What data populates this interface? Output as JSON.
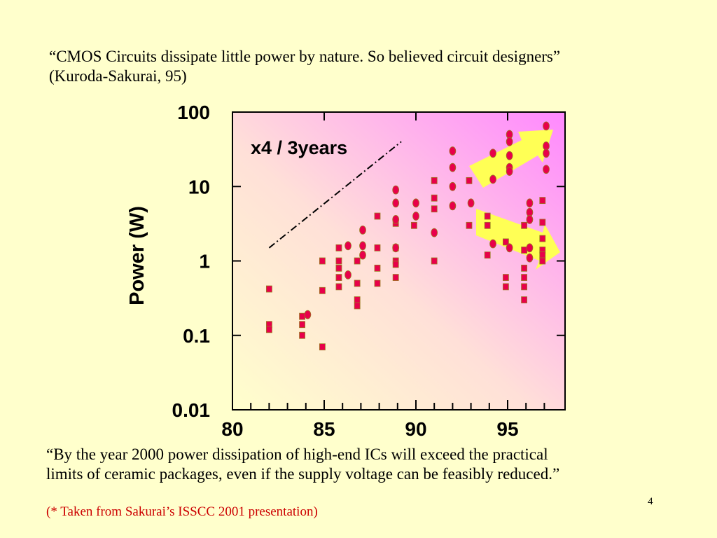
{
  "slide": {
    "quote_top_line1": "“CMOS Circuits dissipate little power by nature. So believed circuit designers”",
    "quote_top_line2": "(Kuroda-Sakurai, 95)",
    "quote_bottom_line1": "“By the year 2000 power dissipation of high-end ICs will exceed the practical",
    "quote_bottom_line2": "limits of ceramic packages, even if the supply voltage can be feasibly reduced.”",
    "source_note": "(* Taken from Sakurai’s ISSCC 2001 presentation)",
    "slide_number": "4"
  },
  "colors": {
    "background": "#ffffcc",
    "marker": "#e8004a",
    "arrow_fill": "#ffff55",
    "gradient_right": "#ff88ff",
    "source_note": "#cc0000"
  },
  "chart_data": {
    "type": "scatter",
    "title": "",
    "xlabel": "",
    "ylabel": "Power (W)",
    "yscale": "log",
    "xlim": [
      80,
      98
    ],
    "ylim": [
      0.01,
      100
    ],
    "x_tick_labels": [
      "80",
      "85",
      "90",
      "95"
    ],
    "x_tick_values": [
      80,
      85,
      90,
      95
    ],
    "y_tick_labels": [
      "100",
      "10",
      "1",
      "0.1",
      "0.01"
    ],
    "y_tick_values": [
      100,
      10,
      1,
      0.1,
      0.01
    ],
    "annotation": "x4 / 3years",
    "trend_line": {
      "x": [
        82,
        89.2
      ],
      "y": [
        1.5,
        40
      ]
    },
    "series": [
      {
        "marker": "square",
        "points": [
          [
            82,
            0.42
          ],
          [
            82,
            0.14
          ],
          [
            82,
            0.12
          ],
          [
            83.8,
            0.18
          ],
          [
            83.8,
            0.14
          ],
          [
            83.8,
            0.1
          ],
          [
            84.9,
            1.0
          ],
          [
            84.9,
            0.4
          ],
          [
            84.9,
            0.07
          ],
          [
            85.8,
            1.5
          ],
          [
            85.8,
            1.0
          ],
          [
            85.8,
            0.8
          ],
          [
            85.8,
            0.6
          ],
          [
            85.8,
            0.45
          ],
          [
            86.8,
            1.0
          ],
          [
            86.8,
            0.5
          ],
          [
            86.8,
            0.3
          ],
          [
            86.8,
            0.25
          ],
          [
            87.9,
            4.0
          ],
          [
            87.9,
            1.5
          ],
          [
            87.9,
            0.8
          ],
          [
            87.9,
            0.5
          ],
          [
            88.9,
            3.2
          ],
          [
            88.9,
            1.5
          ],
          [
            88.9,
            1.0
          ],
          [
            88.9,
            0.9
          ],
          [
            88.9,
            0.6
          ],
          [
            89.9,
            3.0
          ],
          [
            91,
            12.0
          ],
          [
            91,
            7.0
          ],
          [
            91,
            5.0
          ],
          [
            91,
            1.0
          ],
          [
            92.9,
            12.0
          ],
          [
            92.9,
            3.0
          ],
          [
            93.9,
            4.0
          ],
          [
            93.9,
            3.0
          ],
          [
            93.9,
            1.2
          ],
          [
            94.9,
            1.8
          ],
          [
            94.9,
            0.6
          ],
          [
            94.9,
            0.45
          ],
          [
            95.9,
            3.0
          ],
          [
            95.9,
            1.4
          ],
          [
            95.9,
            0.8
          ],
          [
            95.9,
            0.6
          ],
          [
            95.9,
            0.45
          ],
          [
            95.9,
            0.3
          ],
          [
            96.9,
            6.5
          ],
          [
            96.9,
            3.3
          ],
          [
            96.9,
            2.0
          ],
          [
            96.9,
            1.4
          ],
          [
            96.9,
            1.2
          ],
          [
            96.9,
            1.0
          ]
        ]
      },
      {
        "marker": "circle",
        "points": [
          [
            84.1,
            0.19
          ],
          [
            86.3,
            1.6
          ],
          [
            86.3,
            0.65
          ],
          [
            87.1,
            2.6
          ],
          [
            87.1,
            1.6
          ],
          [
            87.1,
            1.2
          ],
          [
            88.9,
            9.0
          ],
          [
            88.9,
            6.0
          ],
          [
            88.9,
            3.6
          ],
          [
            88.9,
            1.5
          ],
          [
            90,
            6.0
          ],
          [
            90,
            4.0
          ],
          [
            91,
            2.4
          ],
          [
            92,
            30.0
          ],
          [
            92,
            18.0
          ],
          [
            92,
            10.0
          ],
          [
            92,
            5.5
          ],
          [
            93,
            6.0
          ],
          [
            94.2,
            28.0
          ],
          [
            94.2,
            12.5
          ],
          [
            94.2,
            1.7
          ],
          [
            95.1,
            50.0
          ],
          [
            95.1,
            40.0
          ],
          [
            95.1,
            26.0
          ],
          [
            95.1,
            18.0
          ],
          [
            95.1,
            16.0
          ],
          [
            95.1,
            1.5
          ],
          [
            96.2,
            6.0
          ],
          [
            96.2,
            4.5
          ],
          [
            96.2,
            3.6
          ],
          [
            96.2,
            1.5
          ],
          [
            96.2,
            1.1
          ],
          [
            97.1,
            65.0
          ],
          [
            97.1,
            35.0
          ],
          [
            97.1,
            28.0
          ],
          [
            97.1,
            17.0
          ]
        ]
      }
    ]
  }
}
